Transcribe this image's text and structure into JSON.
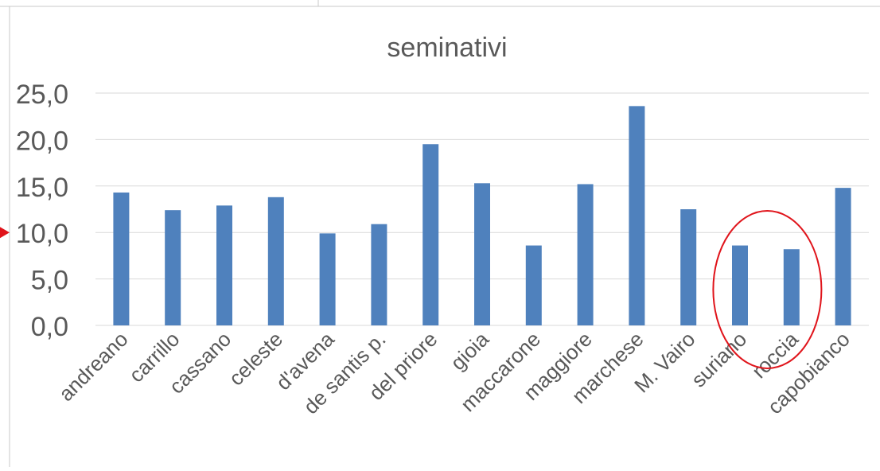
{
  "chart_data": {
    "type": "bar",
    "title": "seminativi",
    "categories": [
      "andreano",
      "carrillo",
      "cassano",
      "celeste",
      "d'avena",
      "de santis p.",
      "del priore",
      "gioia",
      "maccarone",
      "maggiore",
      "marchese",
      "M. Vairo",
      "suriano",
      "roccia",
      "capobianco"
    ],
    "values": [
      14.3,
      12.4,
      12.9,
      13.8,
      9.9,
      10.9,
      19.5,
      15.3,
      8.6,
      15.2,
      23.6,
      12.5,
      8.6,
      8.2,
      14.8
    ],
    "ytick_labels": [
      "0,0",
      "5,0",
      "10,0",
      "15,0",
      "20,0",
      "25,0"
    ],
    "ylim": [
      0,
      25
    ],
    "ytick_step": 5,
    "grid": true,
    "legend": "none",
    "xlabel": "",
    "ylabel": "",
    "colors": {
      "bar": "#4f81bd",
      "grid": "#d9d9d9",
      "text": "#595959",
      "highlight": "#e0141b",
      "frame": "#c8c8c8"
    },
    "annotations": [
      {
        "kind": "ellipse",
        "around": [
          "suriano",
          "roccia"
        ],
        "color": "#e0141b"
      },
      {
        "kind": "arrow",
        "at_value": 10,
        "side": "left",
        "color": "#e0141b"
      }
    ]
  }
}
